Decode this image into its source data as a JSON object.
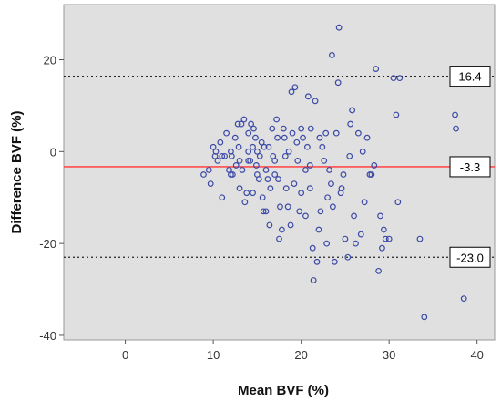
{
  "chart_data": {
    "type": "scatter",
    "title": "",
    "xlabel": "Mean BVF (%)",
    "ylabel": "Difference BVF (%)",
    "xlim": [
      -7,
      42
    ],
    "ylim": [
      -41,
      32
    ],
    "x_ticks": [
      "0",
      "10",
      "20",
      "30",
      "40"
    ],
    "y_ticks": [
      "20",
      "0",
      "-20",
      "-40"
    ],
    "grid": false,
    "colors": {
      "plot_background": "#e0e0e0",
      "points": "#3b4aa6",
      "mean_line": "#ff4d4d",
      "limit_lines": "#222222"
    },
    "reference_lines": [
      {
        "value": 16.4,
        "label": "16.4",
        "style": "dotted"
      },
      {
        "value": -3.3,
        "label": "-3.3",
        "style": "solid"
      },
      {
        "value": -23.0,
        "label": "-23.0",
        "style": "dotted"
      }
    ],
    "points": [
      [
        8.9,
        -5
      ],
      [
        9.5,
        -4
      ],
      [
        9.7,
        -7
      ],
      [
        10,
        1
      ],
      [
        10.2,
        -1
      ],
      [
        10.3,
        0
      ],
      [
        10.5,
        -2
      ],
      [
        10.8,
        2
      ],
      [
        11,
        -1
      ],
      [
        11,
        -10
      ],
      [
        11.3,
        -1
      ],
      [
        11.5,
        4
      ],
      [
        11.8,
        -4
      ],
      [
        12,
        -5
      ],
      [
        12,
        0
      ],
      [
        12.1,
        -1
      ],
      [
        12.2,
        -5
      ],
      [
        12.5,
        3
      ],
      [
        12.6,
        -3
      ],
      [
        12.8,
        6
      ],
      [
        12.9,
        1
      ],
      [
        13,
        -2
      ],
      [
        13,
        -8
      ],
      [
        13.2,
        6
      ],
      [
        13.3,
        -4
      ],
      [
        13.5,
        7
      ],
      [
        13.6,
        -11
      ],
      [
        13.8,
        -9
      ],
      [
        14,
        0
      ],
      [
        14,
        4
      ],
      [
        14,
        -2
      ],
      [
        14.2,
        -2
      ],
      [
        14.3,
        6
      ],
      [
        14.5,
        1
      ],
      [
        14.5,
        -9
      ],
      [
        14.6,
        5
      ],
      [
        14.8,
        3
      ],
      [
        14.9,
        -3
      ],
      [
        15,
        0
      ],
      [
        15,
        -5
      ],
      [
        15.2,
        -6
      ],
      [
        15.3,
        -1
      ],
      [
        15.5,
        2
      ],
      [
        15.6,
        -10
      ],
      [
        15.7,
        -13
      ],
      [
        15.8,
        1
      ],
      [
        16,
        -4
      ],
      [
        16,
        -13
      ],
      [
        16.2,
        -6
      ],
      [
        16.3,
        1
      ],
      [
        16.4,
        -16
      ],
      [
        16.5,
        -8
      ],
      [
        16.7,
        5
      ],
      [
        16.8,
        -1
      ],
      [
        17,
        -2
      ],
      [
        17,
        -5
      ],
      [
        17.2,
        7
      ],
      [
        17.3,
        3
      ],
      [
        17.4,
        -6
      ],
      [
        17.5,
        -19
      ],
      [
        17.6,
        -12
      ],
      [
        17.8,
        -17
      ],
      [
        18,
        5
      ],
      [
        18.1,
        3
      ],
      [
        18.2,
        -1
      ],
      [
        18.3,
        -8
      ],
      [
        18.5,
        -12
      ],
      [
        18.6,
        0
      ],
      [
        18.8,
        -16
      ],
      [
        18.9,
        13
      ],
      [
        19,
        4
      ],
      [
        19.2,
        -7
      ],
      [
        19.3,
        14
      ],
      [
        19.5,
        2
      ],
      [
        19.6,
        -2
      ],
      [
        19.8,
        -13
      ],
      [
        20,
        5
      ],
      [
        20,
        -9
      ],
      [
        20.2,
        3
      ],
      [
        20.5,
        -4
      ],
      [
        20.5,
        -14
      ],
      [
        20.7,
        1
      ],
      [
        20.8,
        12
      ],
      [
        21,
        -3
      ],
      [
        21,
        -8
      ],
      [
        21.1,
        5
      ],
      [
        21.3,
        -21
      ],
      [
        21.4,
        -28
      ],
      [
        21.6,
        11
      ],
      [
        21.8,
        -24
      ],
      [
        22,
        -17
      ],
      [
        22.1,
        3
      ],
      [
        22.2,
        -13
      ],
      [
        22.4,
        1
      ],
      [
        22.6,
        -2
      ],
      [
        22.8,
        4
      ],
      [
        22.9,
        -20
      ],
      [
        23,
        -10
      ],
      [
        23.2,
        -4
      ],
      [
        23.4,
        -7
      ],
      [
        23.5,
        21
      ],
      [
        23.6,
        -12
      ],
      [
        23.8,
        -24
      ],
      [
        24,
        4
      ],
      [
        24.2,
        15
      ],
      [
        24.3,
        27
      ],
      [
        24.5,
        -9
      ],
      [
        24.6,
        -8
      ],
      [
        24.8,
        -5
      ],
      [
        25,
        -19
      ],
      [
        25.3,
        -23
      ],
      [
        25.5,
        -1
      ],
      [
        25.6,
        6
      ],
      [
        25.8,
        9
      ],
      [
        26,
        -14
      ],
      [
        26.2,
        -20
      ],
      [
        26.5,
        4
      ],
      [
        26.8,
        -18
      ],
      [
        27,
        0
      ],
      [
        27.2,
        -11
      ],
      [
        27.5,
        3
      ],
      [
        27.8,
        -5
      ],
      [
        28,
        -5
      ],
      [
        28.3,
        -3
      ],
      [
        28.5,
        18
      ],
      [
        28.8,
        -26
      ],
      [
        29,
        -14
      ],
      [
        29.2,
        -21
      ],
      [
        29.4,
        -17
      ],
      [
        29.6,
        -19
      ],
      [
        30,
        -19
      ],
      [
        30.5,
        16
      ],
      [
        30.8,
        8
      ],
      [
        31,
        -11
      ],
      [
        31.2,
        16
      ],
      [
        33.5,
        -19
      ],
      [
        34,
        -36
      ],
      [
        37.5,
        8
      ],
      [
        37.6,
        5
      ],
      [
        38.5,
        -32
      ]
    ]
  }
}
